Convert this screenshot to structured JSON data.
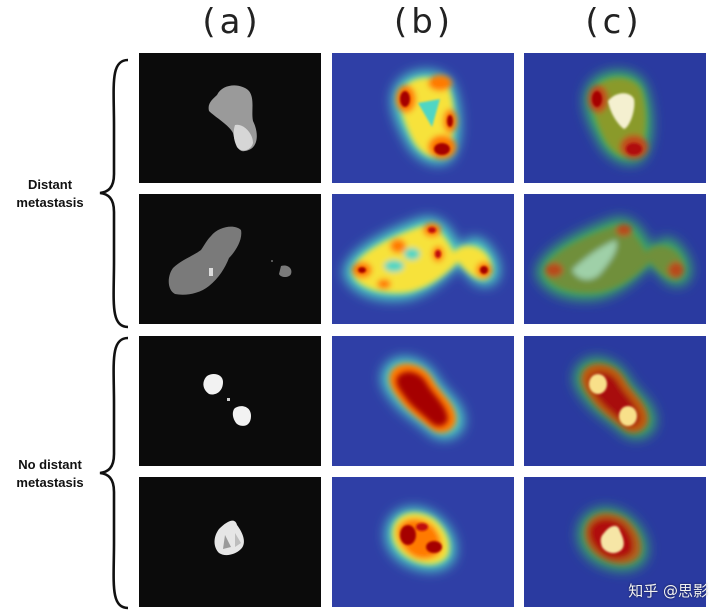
{
  "column_labels": [
    "(a)",
    "(b)",
    "(c)"
  ],
  "group_labels": {
    "distant": [
      "Distant",
      "metastasis"
    ],
    "no_distant": [
      "No distant",
      "metastasis"
    ]
  },
  "watermark": "知乎 @思影",
  "colors": {
    "mask_background": "#0b0b0b",
    "heatmap_background": "#2f3fa6",
    "hot": "#a50000",
    "warm": "#ff7a00",
    "mid": "#f7e23b",
    "cool": "#4fd6c4"
  }
}
